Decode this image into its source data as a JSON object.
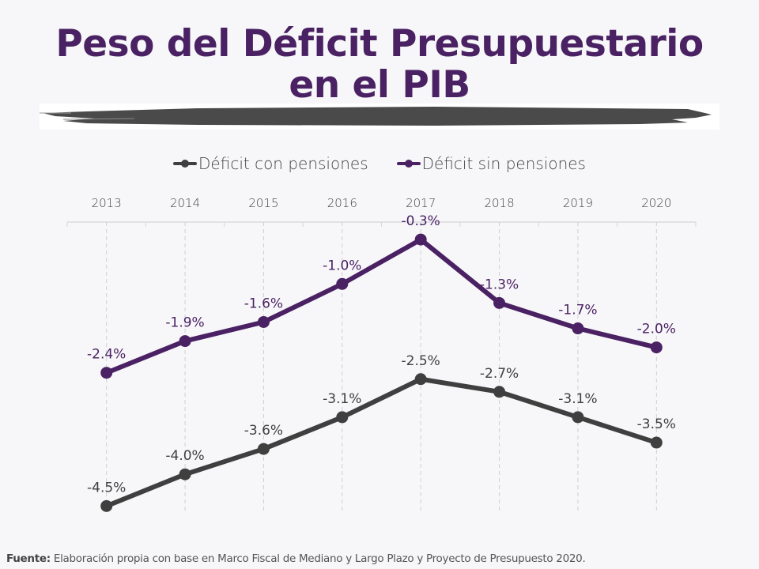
{
  "title": {
    "line1": "Peso del Déficit Presupuestario",
    "line2": "en el PIB"
  },
  "colors": {
    "con_pensiones": "#3f3f3f",
    "sin_pensiones": "#4a2163",
    "title": "#4a2163"
  },
  "chart_data": {
    "type": "line",
    "title": "Peso del Déficit Presupuestario en el PIB",
    "xlabel": "",
    "ylabel": "",
    "x": [
      "2013",
      "2014",
      "2015",
      "2016",
      "2017",
      "2018",
      "2019",
      "2020"
    ],
    "ylim": [
      -4.9,
      0
    ],
    "grid": "vertical-dashed",
    "legend_position": "top",
    "x_axis_position": "top",
    "series": [
      {
        "name": "Déficit con pensiones",
        "color": "#3f3f3f",
        "values": [
          -4.5,
          -4.0,
          -3.6,
          -3.1,
          -2.5,
          -2.7,
          -3.1,
          -3.5
        ],
        "labels": [
          "-4.5%",
          "-4.0%",
          "-3.6%",
          "-3.1%",
          "-2.5%",
          "-2.7%",
          "-3.1%",
          "-3.5%"
        ]
      },
      {
        "name": "Déficit sin pensiones",
        "color": "#4a2163",
        "values": [
          -2.4,
          -1.9,
          -1.6,
          -1.0,
          -0.3,
          -1.3,
          -1.7,
          -2.0
        ],
        "labels": [
          "-2.4%",
          "-1.9%",
          "-1.6%",
          "-1.0%",
          "-0.3%",
          "-1.3%",
          "-1.7%",
          "-2.0%"
        ]
      }
    ]
  },
  "footer": {
    "label": "Fuente:",
    "text": " Elaboración propia con base en Marco Fiscal de Mediano y Largo Plazo y Proyecto de Presupuesto 2020."
  }
}
